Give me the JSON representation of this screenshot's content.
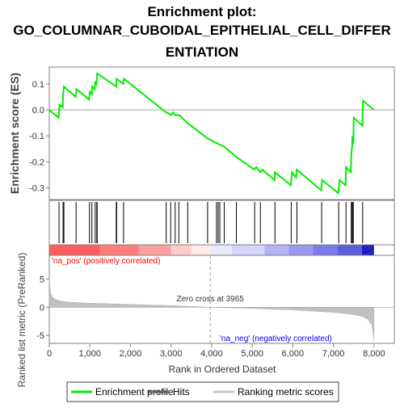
{
  "title_lines": [
    "Enrichment plot:",
    "GO_COLUMNAR_CUBOIDAL_EPITHELIAL_CELL_DIFFER",
    "ENTIATION"
  ],
  "chart_data": {
    "type": "line",
    "x_axis": {
      "label": "Rank in Ordered Dataset",
      "min": 0,
      "max": 8500,
      "ticks": [
        0,
        1000,
        2000,
        3000,
        4000,
        5000,
        6000,
        7000,
        8000
      ],
      "tick_labels": [
        "0",
        "1,000",
        "2,000",
        "3,000",
        "4,000",
        "5,000",
        "6,000",
        "7,000",
        "8,000"
      ]
    },
    "es_panel": {
      "ylabel": "Enrichment score (ES)",
      "ylim": [
        -0.345,
        0.165
      ],
      "yticks": [
        0.1,
        0.0,
        -0.1,
        -0.2,
        -0.3
      ],
      "ytick_labels": [
        "0.1",
        "0.0",
        "-0.1",
        "-0.2",
        "-0.3"
      ],
      "series": [
        {
          "name": "Enrichment profile",
          "color": "#00ee00",
          "points": [
            [
              0,
              0.0
            ],
            [
              230,
              -0.03
            ],
            [
              250,
              0.02
            ],
            [
              330,
              0.01
            ],
            [
              340,
              0.06
            ],
            [
              360,
              0.09
            ],
            [
              650,
              0.05
            ],
            [
              670,
              0.08
            ],
            [
              980,
              0.04
            ],
            [
              1000,
              0.07
            ],
            [
              1050,
              0.06
            ],
            [
              1060,
              0.09
            ],
            [
              1120,
              0.08
            ],
            [
              1130,
              0.11
            ],
            [
              1160,
              0.1
            ],
            [
              1180,
              0.14
            ],
            [
              1650,
              0.09
            ],
            [
              1660,
              0.12
            ],
            [
              1820,
              0.1
            ],
            [
              1840,
              0.12
            ],
            [
              2880,
              -0.01
            ],
            [
              2900,
              -0.01
            ],
            [
              3000,
              -0.02
            ],
            [
              3050,
              -0.01
            ],
            [
              3100,
              -0.02
            ],
            [
              3200,
              -0.02
            ],
            [
              3400,
              -0.05
            ],
            [
              3900,
              -0.11
            ],
            [
              4150,
              -0.13
            ],
            [
              4300,
              -0.14
            ],
            [
              4600,
              -0.18
            ],
            [
              5050,
              -0.23
            ],
            [
              5100,
              -0.22
            ],
            [
              5200,
              -0.24
            ],
            [
              5250,
              -0.23
            ],
            [
              5550,
              -0.27
            ],
            [
              5560,
              -0.24
            ],
            [
              5950,
              -0.29
            ],
            [
              5980,
              -0.24
            ],
            [
              6080,
              -0.26
            ],
            [
              6100,
              -0.23
            ],
            [
              6700,
              -0.31
            ],
            [
              6720,
              -0.27
            ],
            [
              7120,
              -0.32
            ],
            [
              7150,
              -0.27
            ],
            [
              7300,
              -0.29
            ],
            [
              7310,
              -0.22
            ],
            [
              7430,
              -0.24
            ],
            [
              7440,
              -0.17
            ],
            [
              7460,
              -0.14
            ],
            [
              7470,
              -0.1
            ],
            [
              7490,
              -0.13
            ],
            [
              7500,
              -0.03
            ],
            [
              7710,
              -0.06
            ],
            [
              7730,
              0.035
            ],
            [
              8000,
              0.0
            ]
          ]
        }
      ]
    },
    "hits": {
      "name": "Hits",
      "positions": [
        240,
        340,
        360,
        660,
        990,
        1050,
        1130,
        1170,
        1180,
        1650,
        1660,
        1830,
        2880,
        2990,
        3100,
        3190,
        3410,
        3900,
        4120,
        4160,
        4200,
        4310,
        4610,
        5060,
        5200,
        5560,
        5960,
        6100,
        6710,
        7130,
        7310,
        7440,
        7460,
        7470,
        7490,
        7720
      ]
    },
    "ranking_panel": {
      "ylabel": "Ranked list metric (PreRanked)",
      "ylim": [
        -6.4,
        9.2
      ],
      "yticks": [
        5,
        0,
        -5
      ],
      "ytick_labels": [
        "5",
        "0",
        "-5"
      ],
      "series_name": "Ranking metric scores",
      "fill_color": "#c0c0c0",
      "metric_curve": [
        [
          0,
          5.2
        ],
        [
          15,
          3.5
        ],
        [
          40,
          2.3
        ],
        [
          80,
          1.8
        ],
        [
          150,
          1.4
        ],
        [
          250,
          1.15
        ],
        [
          400,
          0.95
        ],
        [
          600,
          0.85
        ],
        [
          1000,
          0.72
        ],
        [
          2000,
          0.5
        ],
        [
          3000,
          0.28
        ],
        [
          3965,
          0.0
        ],
        [
          5000,
          -0.22
        ],
        [
          6000,
          -0.48
        ],
        [
          7000,
          -0.9
        ],
        [
          7400,
          -1.2
        ],
        [
          7700,
          -1.6
        ],
        [
          7850,
          -2.1
        ],
        [
          7950,
          -3.2
        ],
        [
          7990,
          -5.2
        ],
        [
          8000,
          -6.0
        ]
      ],
      "zero_cross": 3965,
      "zero_cross_label": "Zero cross at 3965",
      "pos_label": "'na_pos' (positively correlated)",
      "neg_label": "'na_neg' (negatively correlated)",
      "pos_label_color": "#ff0000",
      "neg_label_color": "#0000ff"
    },
    "color_bar": {
      "segments": [
        {
          "from": 0,
          "to": 1250,
          "color": "#ff5f5f"
        },
        {
          "from": 1250,
          "to": 2200,
          "color": "#ff7d7d"
        },
        {
          "from": 2200,
          "to": 3000,
          "color": "#ffa0a0"
        },
        {
          "from": 3000,
          "to": 3500,
          "color": "#ffcccc"
        },
        {
          "from": 3500,
          "to": 3965,
          "color": "#ffe9e9"
        },
        {
          "from": 3965,
          "to": 4500,
          "color": "#eaeaff"
        },
        {
          "from": 4500,
          "to": 5300,
          "color": "#d4d4fb"
        },
        {
          "from": 5300,
          "to": 5900,
          "color": "#b4b4f6"
        },
        {
          "from": 5900,
          "to": 6500,
          "color": "#9a9aef"
        },
        {
          "from": 6500,
          "to": 7100,
          "color": "#7a7ae8"
        },
        {
          "from": 7100,
          "to": 7700,
          "color": "#5c5cdc"
        },
        {
          "from": 7700,
          "to": 8000,
          "color": "#2020c0"
        }
      ]
    },
    "legend": [
      {
        "label": "Enrichment profile",
        "color": "#00ee00"
      },
      {
        "label": "Hits",
        "color": "#606060"
      },
      {
        "label": "Ranking metric scores",
        "color": "#c8c8c8"
      }
    ]
  }
}
